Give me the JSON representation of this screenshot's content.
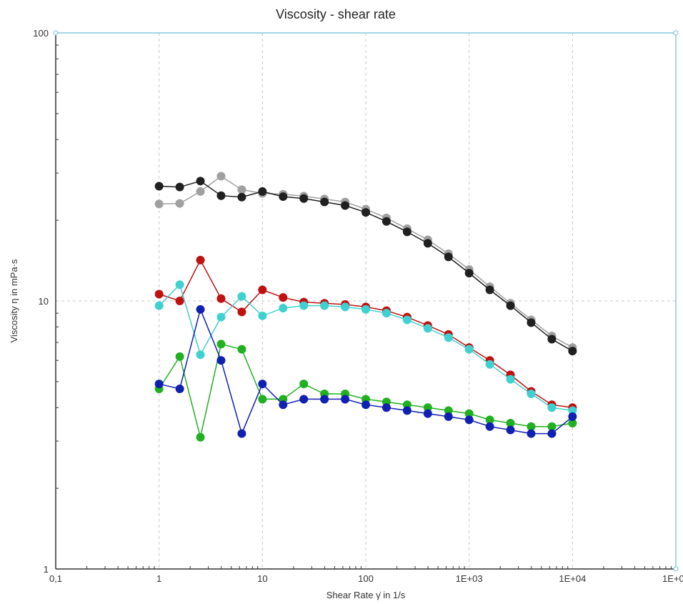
{
  "chart_data": {
    "type": "line",
    "title": "Viscosity - shear rate",
    "xlabel": "Shear Rate γ̇ in 1/s",
    "ylabel": "Viscosity η in mPa·s",
    "xscale": "log",
    "yscale": "log",
    "xlim": [
      0.1,
      100000
    ],
    "ylim": [
      1,
      100
    ],
    "grid": true,
    "x_ticks": [
      {
        "value": 0.1,
        "label": "0,1"
      },
      {
        "value": 1,
        "label": "1"
      },
      {
        "value": 10,
        "label": "10"
      },
      {
        "value": 100,
        "label": "100"
      },
      {
        "value": 1000,
        "label": "1E+03"
      },
      {
        "value": 10000,
        "label": "1E+04"
      },
      {
        "value": 100000,
        "label": "1E+05"
      }
    ],
    "y_ticks": [
      {
        "value": 1,
        "label": "1"
      },
      {
        "value": 10,
        "label": "10"
      },
      {
        "value": 100,
        "label": "100"
      }
    ],
    "series": [
      {
        "color": "#a0a0a0",
        "x": [
          1,
          1.585,
          2.512,
          3.981,
          6.31,
          10,
          15.85,
          25.12,
          39.81,
          63.1,
          100,
          158.5,
          251.2,
          398.1,
          631,
          1000,
          1585,
          2512,
          3981,
          6310,
          10000
        ],
        "y": [
          23.0,
          23.1,
          25.6,
          29.2,
          26.0,
          25.2,
          25.0,
          24.6,
          24.0,
          23.4,
          22.0,
          20.4,
          18.6,
          16.9,
          15.0,
          13.1,
          11.3,
          9.8,
          8.5,
          7.4,
          6.7
        ]
      },
      {
        "color": "#202020",
        "x": [
          1,
          1.585,
          2.512,
          3.981,
          6.31,
          10,
          15.85,
          25.12,
          39.81,
          63.1,
          100,
          158.5,
          251.2,
          398.1,
          631,
          1000,
          1585,
          2512,
          3981,
          6310,
          10000
        ],
        "y": [
          26.8,
          26.6,
          28.0,
          24.7,
          24.4,
          25.6,
          24.5,
          24.1,
          23.4,
          22.7,
          21.4,
          19.8,
          18.1,
          16.4,
          14.6,
          12.7,
          11.0,
          9.6,
          8.3,
          7.2,
          6.5
        ]
      },
      {
        "color": "#c01010",
        "x": [
          1,
          1.585,
          2.512,
          3.981,
          6.31,
          10,
          15.85,
          25.12,
          39.81,
          63.1,
          100,
          158.5,
          251.2,
          398.1,
          631,
          1000,
          1585,
          2512,
          3981,
          6310,
          10000
        ],
        "y": [
          10.6,
          10.0,
          14.2,
          10.2,
          9.1,
          11.0,
          10.3,
          9.9,
          9.8,
          9.7,
          9.5,
          9.2,
          8.7,
          8.1,
          7.5,
          6.7,
          6.0,
          5.3,
          4.6,
          4.1,
          4.0
        ]
      },
      {
        "color": "#40d0d0",
        "x": [
          1,
          1.585,
          2.512,
          3.981,
          6.31,
          10,
          15.85,
          25.12,
          39.81,
          63.1,
          100,
          158.5,
          251.2,
          398.1,
          631,
          1000,
          1585,
          2512,
          3981,
          6310,
          10000
        ],
        "y": [
          9.6,
          11.5,
          6.3,
          8.7,
          10.4,
          8.8,
          9.4,
          9.6,
          9.6,
          9.5,
          9.3,
          9.0,
          8.5,
          7.9,
          7.3,
          6.6,
          5.8,
          5.1,
          4.5,
          4.0,
          3.9
        ]
      },
      {
        "color": "#20b020",
        "x": [
          1,
          1.585,
          2.512,
          3.981,
          6.31,
          10,
          15.85,
          25.12,
          39.81,
          63.1,
          100,
          158.5,
          251.2,
          398.1,
          631,
          1000,
          1585,
          2512,
          3981,
          6310,
          10000
        ],
        "y": [
          4.7,
          6.2,
          3.1,
          6.9,
          6.6,
          4.3,
          4.3,
          4.9,
          4.5,
          4.5,
          4.3,
          4.2,
          4.1,
          4.0,
          3.9,
          3.8,
          3.6,
          3.5,
          3.4,
          3.4,
          3.5
        ]
      },
      {
        "color": "#1020b0",
        "x": [
          1,
          1.585,
          2.512,
          3.981,
          6.31,
          10,
          15.85,
          25.12,
          39.81,
          63.1,
          100,
          158.5,
          251.2,
          398.1,
          631,
          1000,
          1585,
          2512,
          3981,
          6310,
          10000
        ],
        "y": [
          4.9,
          4.7,
          9.3,
          6.0,
          3.2,
          4.9,
          4.1,
          4.3,
          4.3,
          4.3,
          4.1,
          4.0,
          3.9,
          3.8,
          3.7,
          3.6,
          3.4,
          3.3,
          3.2,
          3.2,
          3.7
        ]
      }
    ]
  }
}
